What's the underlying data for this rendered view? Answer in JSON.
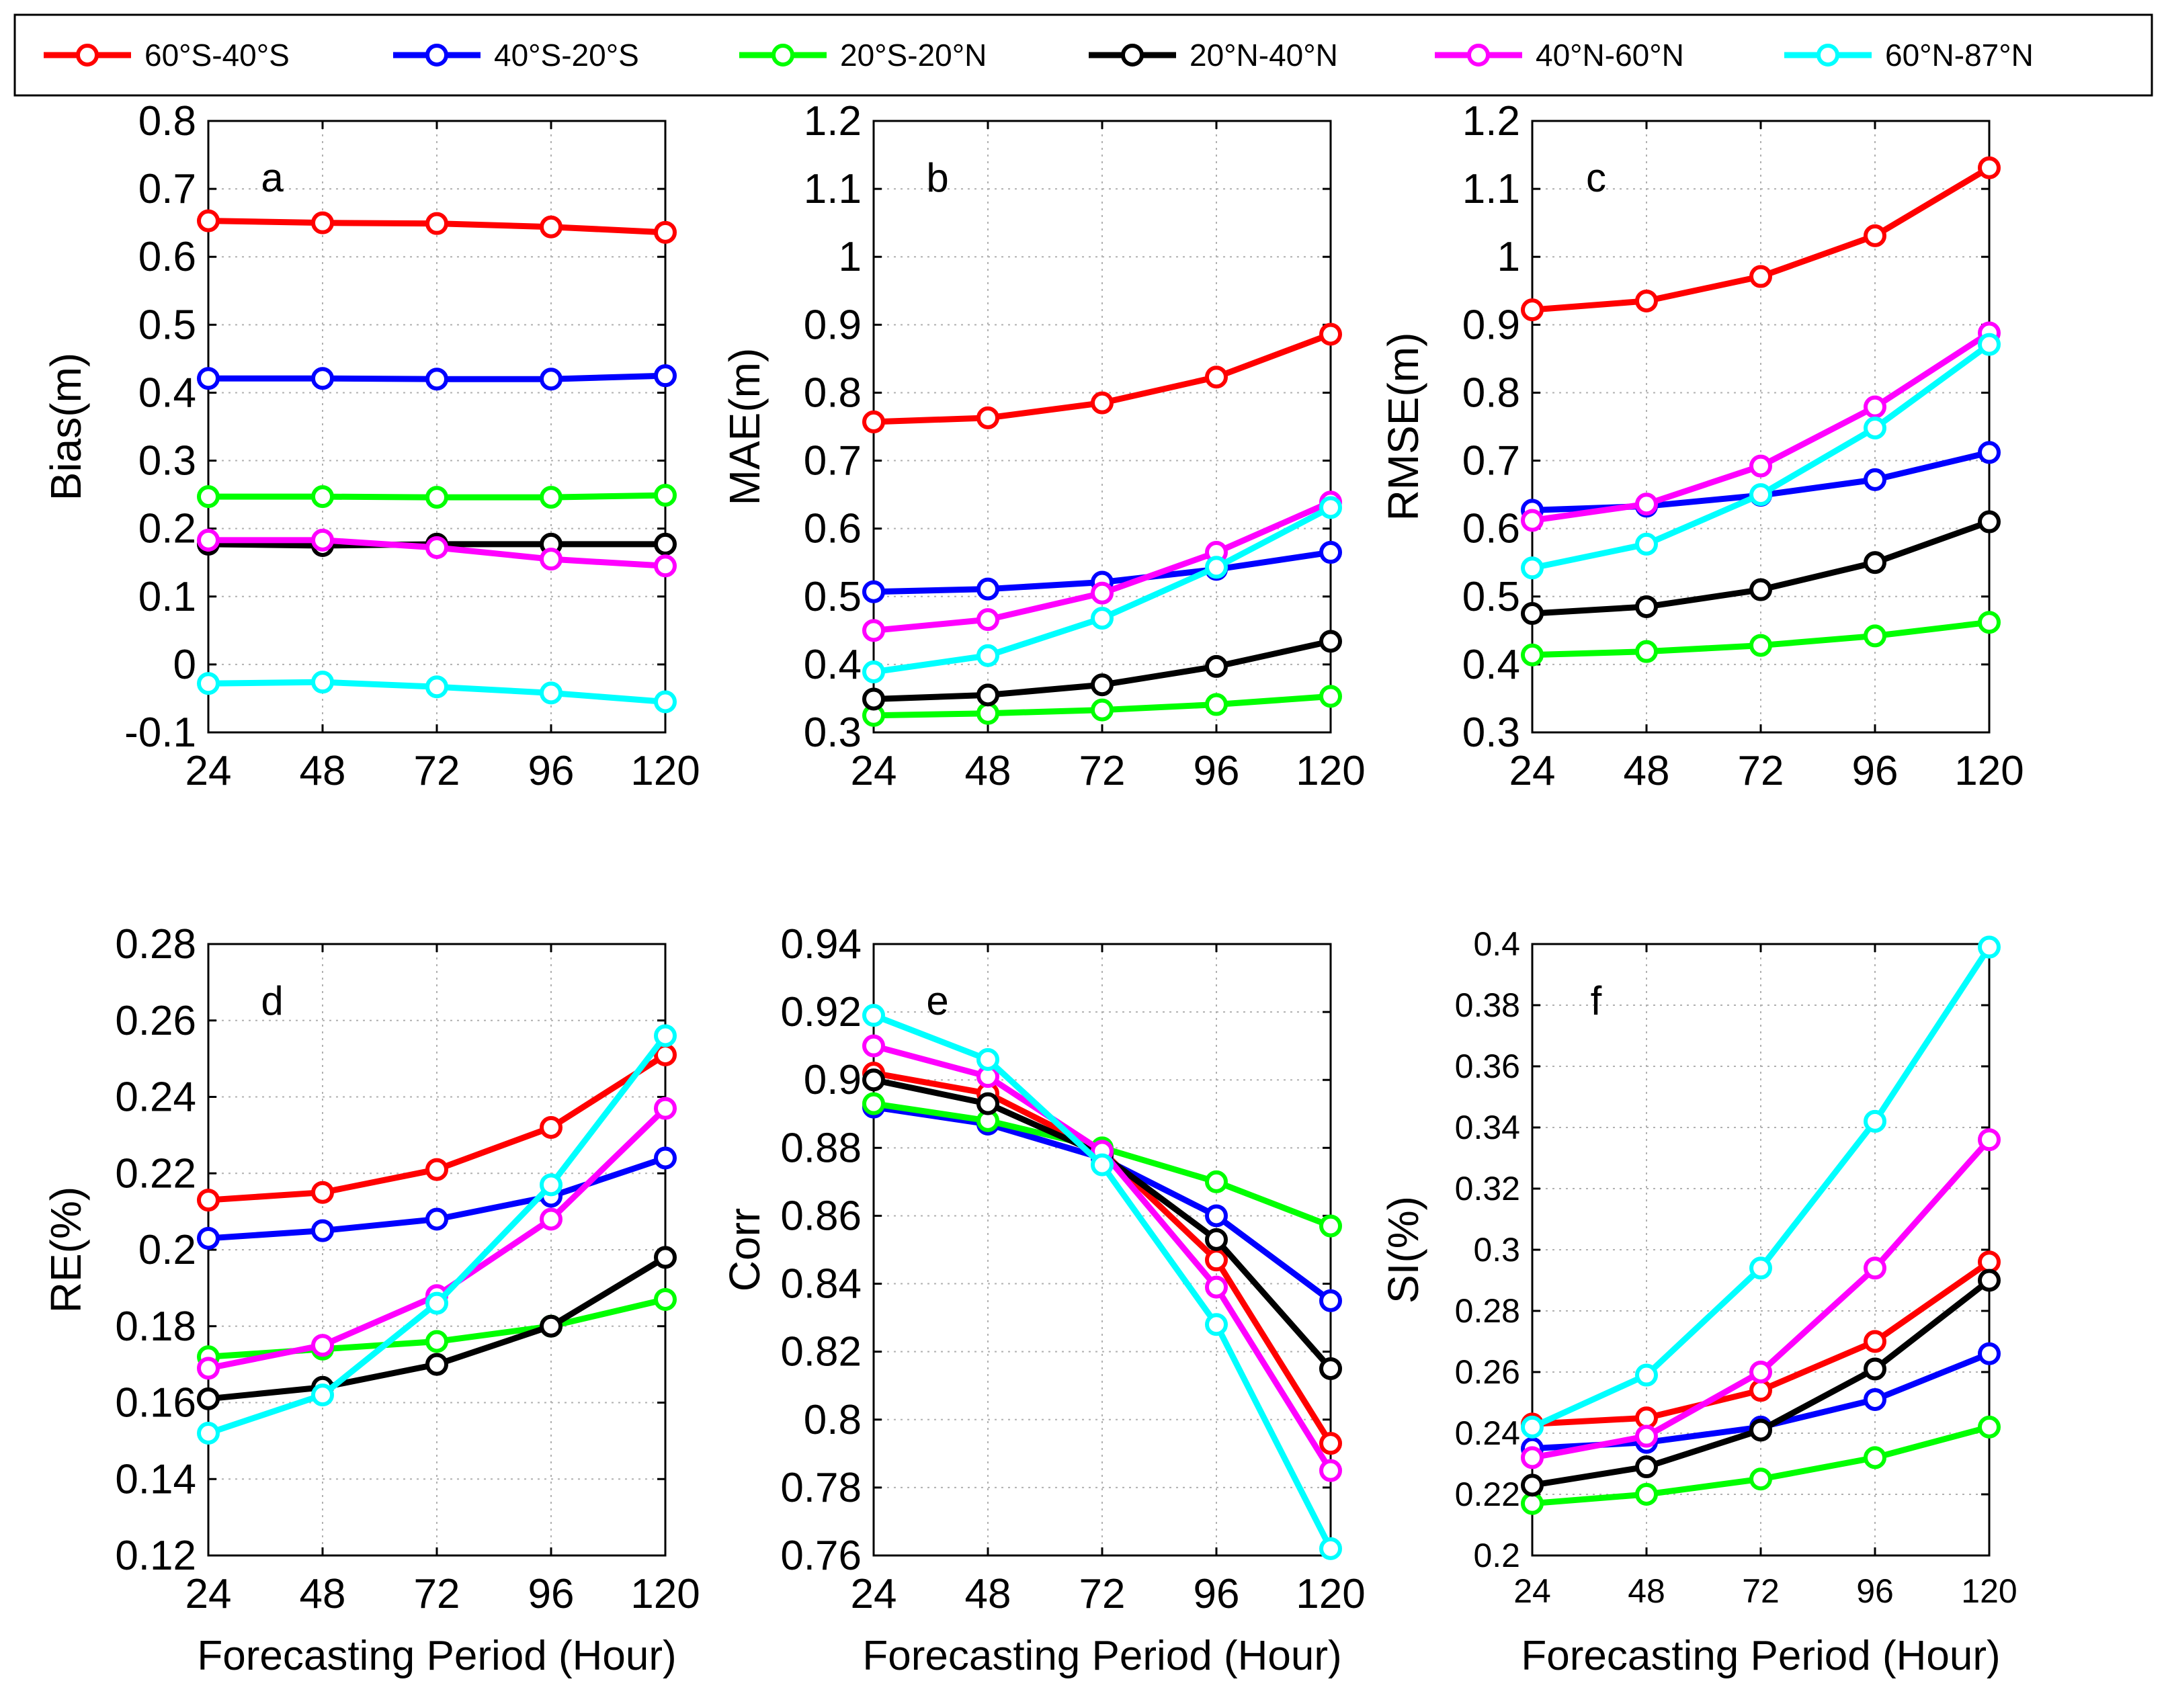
{
  "colors": {
    "s1": "#ff0000",
    "s2": "#0000ff",
    "s3": "#00ff00",
    "s4": "#000000",
    "s5": "#ff00ff",
    "s6": "#00ffff"
  },
  "legend": [
    {
      "key": "s1",
      "label": "60°S-40°S"
    },
    {
      "key": "s2",
      "label": "40°S-20°S"
    },
    {
      "key": "s3",
      "label": "20°S-20°N"
    },
    {
      "key": "s4",
      "label": "20°N-40°N"
    },
    {
      "key": "s5",
      "label": "40°N-60°N"
    },
    {
      "key": "s6",
      "label": "60°N-87°N"
    }
  ],
  "chart_data": [
    {
      "type": "line",
      "panel": "a",
      "ylabel": "Bias(m)",
      "xlabel": "",
      "x": [
        24,
        48,
        72,
        96,
        120
      ],
      "xticks": [
        "24",
        "48",
        "72",
        "96",
        "120"
      ],
      "ylim": [
        -0.1,
        0.8
      ],
      "yticks": [
        "-0.1",
        "0",
        "0.1",
        "0.2",
        "0.3",
        "0.4",
        "0.5",
        "0.6",
        "0.7",
        "0.8"
      ],
      "series": [
        {
          "key": "s1",
          "name": "60°S-40°S",
          "values": [
            0.653,
            0.65,
            0.649,
            0.644,
            0.636
          ]
        },
        {
          "key": "s2",
          "name": "40°S-20°S",
          "values": [
            0.421,
            0.421,
            0.42,
            0.42,
            0.425
          ]
        },
        {
          "key": "s3",
          "name": "20°S-20°N",
          "values": [
            0.247,
            0.247,
            0.246,
            0.246,
            0.249
          ]
        },
        {
          "key": "s4",
          "name": "20°N-40°N",
          "values": [
            0.177,
            0.175,
            0.177,
            0.177,
            0.177
          ]
        },
        {
          "key": "s5",
          "name": "40°N-60°N",
          "values": [
            0.183,
            0.183,
            0.172,
            0.155,
            0.145
          ]
        },
        {
          "key": "s6",
          "name": "60°N-87°N",
          "values": [
            -0.028,
            -0.026,
            -0.033,
            -0.042,
            -0.055
          ]
        }
      ]
    },
    {
      "type": "line",
      "panel": "b",
      "ylabel": "MAE(m)",
      "xlabel": "",
      "x": [
        24,
        48,
        72,
        96,
        120
      ],
      "xticks": [
        "24",
        "48",
        "72",
        "96",
        "120"
      ],
      "ylim": [
        0.3,
        1.2
      ],
      "yticks": [
        "0.3",
        "0.4",
        "0.5",
        "0.6",
        "0.7",
        "0.8",
        "0.9",
        "1",
        "1.1",
        "1.2"
      ],
      "series": [
        {
          "key": "s1",
          "name": "60°S-40°S",
          "values": [
            0.757,
            0.763,
            0.785,
            0.823,
            0.886
          ]
        },
        {
          "key": "s2",
          "name": "40°S-20°S",
          "values": [
            0.507,
            0.511,
            0.521,
            0.54,
            0.565
          ]
        },
        {
          "key": "s3",
          "name": "20°S-20°N",
          "values": [
            0.325,
            0.328,
            0.333,
            0.341,
            0.353
          ]
        },
        {
          "key": "s4",
          "name": "20°N-40°N",
          "values": [
            0.349,
            0.355,
            0.37,
            0.397,
            0.434
          ]
        },
        {
          "key": "s5",
          "name": "40°N-60°N",
          "values": [
            0.45,
            0.466,
            0.505,
            0.565,
            0.639
          ]
        },
        {
          "key": "s6",
          "name": "60°N-87°N",
          "values": [
            0.389,
            0.413,
            0.468,
            0.543,
            0.631
          ]
        }
      ]
    },
    {
      "type": "line",
      "panel": "c",
      "ylabel": "RMSE(m)",
      "xlabel": "",
      "x": [
        24,
        48,
        72,
        96,
        120
      ],
      "xticks": [
        "24",
        "48",
        "72",
        "96",
        "120"
      ],
      "ylim": [
        0.3,
        1.2
      ],
      "yticks": [
        "0.3",
        "0.4",
        "0.5",
        "0.6",
        "0.7",
        "0.8",
        "0.9",
        "1",
        "1.1",
        "1.2"
      ],
      "series": [
        {
          "key": "s1",
          "name": "60°S-40°S",
          "values": [
            0.922,
            0.935,
            0.971,
            1.031,
            1.131
          ]
        },
        {
          "key": "s2",
          "name": "40°S-20°S",
          "values": [
            0.627,
            0.633,
            0.649,
            0.672,
            0.712
          ]
        },
        {
          "key": "s3",
          "name": "20°S-20°N",
          "values": [
            0.414,
            0.419,
            0.428,
            0.442,
            0.462
          ]
        },
        {
          "key": "s4",
          "name": "20°N-40°N",
          "values": [
            0.475,
            0.485,
            0.51,
            0.55,
            0.61
          ]
        },
        {
          "key": "s5",
          "name": "40°N-60°N",
          "values": [
            0.612,
            0.636,
            0.692,
            0.779,
            0.888
          ]
        },
        {
          "key": "s6",
          "name": "60°N-87°N",
          "values": [
            0.542,
            0.577,
            0.65,
            0.748,
            0.871
          ]
        }
      ]
    },
    {
      "type": "line",
      "panel": "d",
      "ylabel": "RE(%)",
      "xlabel": "Forecasting Period (Hour)",
      "x": [
        24,
        48,
        72,
        96,
        120
      ],
      "xticks": [
        "24",
        "48",
        "72",
        "96",
        "120"
      ],
      "ylim": [
        0.12,
        0.28
      ],
      "yticks": [
        "0.12",
        "0.14",
        "0.16",
        "0.18",
        "0.2",
        "0.22",
        "0.24",
        "0.26",
        "0.28"
      ],
      "series": [
        {
          "key": "s1",
          "name": "60°S-40°S",
          "values": [
            0.213,
            0.215,
            0.221,
            0.232,
            0.251
          ]
        },
        {
          "key": "s2",
          "name": "40°S-20°S",
          "values": [
            0.203,
            0.205,
            0.208,
            0.214,
            0.224
          ]
        },
        {
          "key": "s3",
          "name": "20°S-20°N",
          "values": [
            0.172,
            0.174,
            0.176,
            0.18,
            0.187
          ]
        },
        {
          "key": "s4",
          "name": "20°N-40°N",
          "values": [
            0.161,
            0.164,
            0.17,
            0.18,
            0.198
          ]
        },
        {
          "key": "s5",
          "name": "40°N-60°N",
          "values": [
            0.169,
            0.175,
            0.188,
            0.208,
            0.237
          ]
        },
        {
          "key": "s6",
          "name": "60°N-87°N",
          "values": [
            0.152,
            0.162,
            0.186,
            0.217,
            0.256
          ]
        }
      ]
    },
    {
      "type": "line",
      "panel": "e",
      "ylabel": "Corr",
      "xlabel": "Forecasting Period (Hour)",
      "x": [
        24,
        48,
        72,
        96,
        120
      ],
      "xticks": [
        "24",
        "48",
        "72",
        "96",
        "120"
      ],
      "ylim": [
        0.76,
        0.94
      ],
      "yticks": [
        "0.76",
        "0.78",
        "0.8",
        "0.82",
        "0.84",
        "0.86",
        "0.88",
        "0.9",
        "0.92",
        "0.94"
      ],
      "series": [
        {
          "key": "s1",
          "name": "60°S-40°S",
          "values": [
            0.902,
            0.896,
            0.879,
            0.847,
            0.793
          ]
        },
        {
          "key": "s2",
          "name": "40°S-20°S",
          "values": [
            0.892,
            0.887,
            0.877,
            0.86,
            0.835
          ]
        },
        {
          "key": "s3",
          "name": "20°S-20°N",
          "values": [
            0.893,
            0.888,
            0.88,
            0.87,
            0.857
          ]
        },
        {
          "key": "s4",
          "name": "20°N-40°N",
          "values": [
            0.9,
            0.893,
            0.878,
            0.853,
            0.815
          ]
        },
        {
          "key": "s5",
          "name": "40°N-60°N",
          "values": [
            0.91,
            0.901,
            0.879,
            0.839,
            0.785
          ]
        },
        {
          "key": "s6",
          "name": "60°N-87°N",
          "values": [
            0.919,
            0.906,
            0.875,
            0.828,
            0.762
          ]
        }
      ]
    },
    {
      "type": "line",
      "panel": "f",
      "ylabel": "SI(%)",
      "xlabel": "Forecasting Period (Hour)",
      "x": [
        24,
        48,
        72,
        96,
        120
      ],
      "xticks": [
        "24",
        "48",
        "72",
        "96",
        "120"
      ],
      "ylim": [
        0.2,
        0.4
      ],
      "yticks": [
        "0.2",
        "0.22",
        "0.24",
        "0.26",
        "0.28",
        "0.3",
        "0.32",
        "0.34",
        "0.36",
        "0.38",
        "0.4"
      ],
      "series": [
        {
          "key": "s1",
          "name": "60°S-40°S",
          "values": [
            0.243,
            0.245,
            0.254,
            0.27,
            0.296
          ]
        },
        {
          "key": "s2",
          "name": "40°S-20°S",
          "values": [
            0.235,
            0.237,
            0.242,
            0.251,
            0.266
          ]
        },
        {
          "key": "s3",
          "name": "20°S-20°N",
          "values": [
            0.217,
            0.22,
            0.225,
            0.232,
            0.242
          ]
        },
        {
          "key": "s4",
          "name": "20°N-40°N",
          "values": [
            0.223,
            0.229,
            0.241,
            0.261,
            0.29
          ]
        },
        {
          "key": "s5",
          "name": "40°N-60°N",
          "values": [
            0.232,
            0.239,
            0.26,
            0.294,
            0.336
          ]
        },
        {
          "key": "s6",
          "name": "60°N-87°N",
          "values": [
            0.242,
            0.259,
            0.294,
            0.342,
            0.399
          ]
        }
      ]
    }
  ]
}
